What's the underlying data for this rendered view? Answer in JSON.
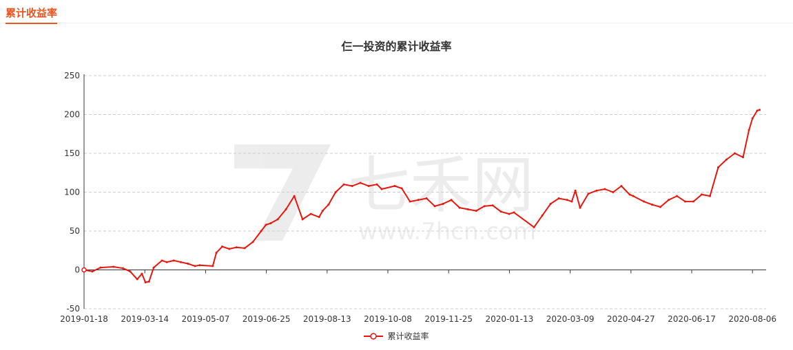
{
  "tab": {
    "label": "累计收益率"
  },
  "watermark": {
    "brand": "七禾网",
    "url": "www.7hcn.com"
  },
  "colors": {
    "accent": "#e9541f",
    "series": "#e8150c",
    "grid": "#cccccc",
    "axis": "#333333"
  },
  "chart_data": {
    "type": "line",
    "title": "仨一投资的累计收益率",
    "xlabel": "",
    "ylabel": "",
    "ylim": [
      -50,
      250
    ],
    "yticks": [
      -50,
      0,
      50,
      100,
      150,
      200,
      250
    ],
    "xticks": [
      "2019-01-18",
      "2019-03-14",
      "2019-05-07",
      "2019-06-25",
      "2019-08-13",
      "2019-10-08",
      "2019-11-25",
      "2020-01-13",
      "2020-03-09",
      "2020-04-27",
      "2020-06-17",
      "2020-08-06"
    ],
    "grid": true,
    "legend_position": "bottom",
    "series": [
      {
        "name": "累计收益率",
        "x": [
          "2019-01-18",
          "2019-01-25",
          "2019-02-01",
          "2019-02-12",
          "2019-02-20",
          "2019-02-26",
          "2019-03-04",
          "2019-03-08",
          "2019-03-11",
          "2019-03-14",
          "2019-03-18",
          "2019-03-25",
          "2019-03-29",
          "2019-04-04",
          "2019-04-10",
          "2019-04-16",
          "2019-04-22",
          "2019-04-26",
          "2019-05-07",
          "2019-05-10",
          "2019-05-15",
          "2019-05-21",
          "2019-05-27",
          "2019-06-03",
          "2019-06-10",
          "2019-06-17",
          "2019-06-21",
          "2019-06-25",
          "2019-07-01",
          "2019-07-08",
          "2019-07-15",
          "2019-07-22",
          "2019-07-29",
          "2019-08-05",
          "2019-08-08",
          "2019-08-13",
          "2019-08-19",
          "2019-08-26",
          "2019-09-02",
          "2019-09-09",
          "2019-09-16",
          "2019-09-23",
          "2019-09-27",
          "2019-10-08",
          "2019-10-14",
          "2019-10-21",
          "2019-10-28",
          "2019-11-04",
          "2019-11-11",
          "2019-11-18",
          "2019-11-25",
          "2019-12-02",
          "2019-12-09",
          "2019-12-16",
          "2019-12-23",
          "2019-12-30",
          "2020-01-06",
          "2020-01-13",
          "2020-01-17",
          "2020-02-03",
          "2020-02-10",
          "2020-02-17",
          "2020-02-24",
          "2020-03-02",
          "2020-03-06",
          "2020-03-09",
          "2020-03-13",
          "2020-03-20",
          "2020-03-27",
          "2020-04-03",
          "2020-04-10",
          "2020-04-17",
          "2020-04-24",
          "2020-04-27",
          "2020-05-06",
          "2020-05-13",
          "2020-05-20",
          "2020-05-27",
          "2020-06-03",
          "2020-06-10",
          "2020-06-17",
          "2020-06-24",
          "2020-07-01",
          "2020-07-08",
          "2020-07-15",
          "2020-07-22",
          "2020-07-29",
          "2020-08-03",
          "2020-08-06",
          "2020-08-10",
          "2020-08-12"
        ],
        "y": [
          0,
          -2,
          3,
          4,
          2,
          -2,
          -12,
          -5,
          -16,
          -15,
          3,
          12,
          10,
          12,
          10,
          8,
          5,
          6,
          5,
          22,
          30,
          27,
          29,
          28,
          36,
          50,
          58,
          60,
          65,
          78,
          95,
          65,
          72,
          68,
          76,
          84,
          100,
          110,
          108,
          112,
          108,
          110,
          104,
          108,
          105,
          88,
          90,
          92,
          82,
          85,
          90,
          80,
          78,
          76,
          82,
          83,
          75,
          72,
          74,
          55,
          70,
          85,
          92,
          90,
          88,
          102,
          80,
          98,
          102,
          104,
          100,
          108,
          97,
          95,
          88,
          84,
          81,
          90,
          95,
          88,
          88,
          97,
          95,
          132,
          142,
          150,
          145,
          180,
          195,
          205,
          206
        ]
      }
    ]
  }
}
